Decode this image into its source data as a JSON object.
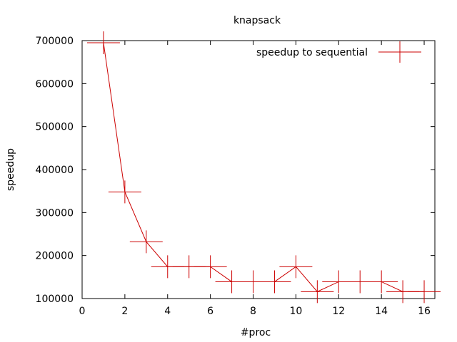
{
  "chart_data": {
    "type": "line",
    "title": "knapsack",
    "xlabel": "#proc",
    "ylabel": "speedup",
    "xlim": [
      0,
      16.5
    ],
    "ylim": [
      100000,
      700000
    ],
    "xticks": [
      0,
      2,
      4,
      6,
      8,
      10,
      12,
      14,
      16
    ],
    "xtick_labels": [
      "0",
      "2",
      "4",
      "6",
      "8",
      "10",
      "12",
      "14",
      "16"
    ],
    "yticks": [
      100000,
      200000,
      300000,
      400000,
      500000,
      600000,
      700000
    ],
    "ytick_labels": [
      "100000",
      "200000",
      "300000",
      "400000",
      "500000",
      "600000",
      "700000"
    ],
    "grid": false,
    "legend_position": "top-right",
    "colors": {
      "series": "#cc0000",
      "axis": "#000000",
      "background": "#ffffff"
    },
    "series": [
      {
        "name": "speedup to sequential",
        "marker": "plus",
        "x": [
          1,
          2,
          3,
          4,
          5,
          6,
          7,
          8,
          9,
          10,
          11,
          12,
          13,
          14,
          15,
          16
        ],
        "y": [
          695000,
          348000,
          232000,
          174000,
          174000,
          174000,
          139000,
          139000,
          139000,
          174000,
          116000,
          139000,
          139000,
          139000,
          116000,
          116000
        ]
      }
    ]
  }
}
